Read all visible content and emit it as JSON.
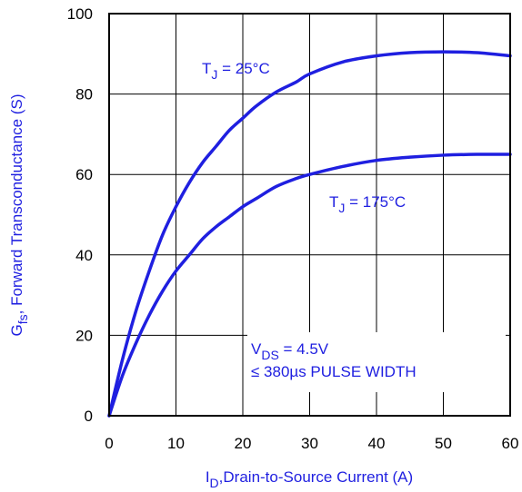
{
  "chart_data": {
    "type": "line",
    "title": "",
    "xlabel": {
      "main": "I",
      "sub": "D",
      "rest": ",Drain-to-Source Current (A)"
    },
    "ylabel": {
      "main": "G",
      "sub": "fs",
      "rest": ", Forward Transconductance (S)"
    },
    "xlim": [
      0,
      60
    ],
    "ylim": [
      0,
      100
    ],
    "x_ticks": [
      0,
      10,
      20,
      30,
      40,
      50,
      60
    ],
    "y_ticks": [
      0,
      20,
      40,
      60,
      80,
      100
    ],
    "grid": true,
    "series": [
      {
        "name": {
          "main": "T",
          "sub": "J",
          "rest": " = 25°C"
        },
        "x": [
          0,
          2,
          4,
          6,
          8,
          10,
          12,
          14,
          16,
          18,
          20,
          22,
          25,
          28,
          30,
          35,
          40,
          45,
          50,
          55,
          60
        ],
        "y": [
          0,
          14,
          26,
          36,
          45,
          52,
          58,
          63,
          67,
          71,
          74,
          77,
          80.5,
          83,
          85,
          88,
          89.5,
          90.3,
          90.5,
          90.3,
          89.5
        ]
      },
      {
        "name": {
          "main": "T",
          "sub": "J",
          "rest": " = 175°C"
        },
        "x": [
          0,
          2,
          4,
          6,
          8,
          10,
          12,
          14,
          16,
          18,
          20,
          22,
          25,
          28,
          30,
          35,
          40,
          45,
          50,
          55,
          60
        ],
        "y": [
          0,
          10,
          18,
          25,
          31,
          36,
          40,
          44,
          47,
          49.5,
          52,
          54,
          57,
          59,
          60,
          62,
          63.5,
          64.3,
          64.8,
          65,
          65
        ]
      }
    ],
    "annotations": {
      "vds": {
        "main": "V",
        "sub": "DS",
        "rest": " = 4.5V"
      },
      "pulse": "≤ 380µs PULSE WIDTH"
    },
    "colors": {
      "curve": "#1f1fe0",
      "label": "#1f1fe0",
      "axis": "#000000"
    }
  }
}
